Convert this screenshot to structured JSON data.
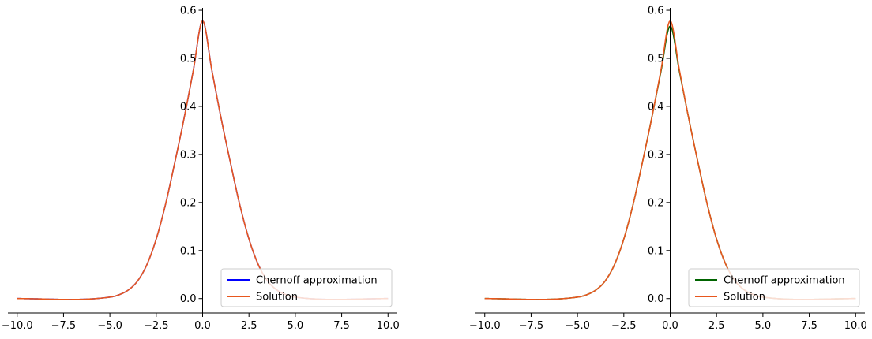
{
  "chart_data": [
    {
      "type": "line",
      "title": "",
      "xlabel": "",
      "ylabel": "",
      "xlim": [
        -10.5,
        10.5
      ],
      "ylim": [
        -0.03,
        0.605
      ],
      "xticks": [
        -10.0,
        -7.5,
        -5.0,
        -2.5,
        0.0,
        2.5,
        5.0,
        7.5,
        10.0
      ],
      "xtick_labels": [
        "−10.0",
        "−7.5",
        "−5.0",
        "−2.5",
        "0.0",
        "2.5",
        "5.0",
        "7.5",
        "10.0"
      ],
      "yticks": [
        0.0,
        0.1,
        0.2,
        0.3,
        0.4,
        0.5,
        0.6
      ],
      "ytick_labels": [
        "0.0",
        "0.1",
        "0.2",
        "0.3",
        "0.4",
        "0.5",
        "0.6"
      ],
      "grid": false,
      "legend_position": "lower-right",
      "x": [
        -10.0,
        -5.0,
        -4.5,
        -4.0,
        -3.5,
        -3.0,
        -2.5,
        -2.0,
        -1.5,
        -1.0,
        -0.5,
        0.0,
        0.5,
        1.0,
        1.5,
        2.0,
        2.5,
        3.0,
        3.5,
        4.0,
        4.5,
        5.0,
        10.0
      ],
      "series": [
        {
          "name": "Chernoff approximation",
          "color": "#0000ff",
          "values": [
            0.0,
            0.003,
            0.008,
            0.018,
            0.037,
            0.071,
            0.124,
            0.196,
            0.283,
            0.375,
            0.475,
            0.578,
            0.475,
            0.375,
            0.283,
            0.196,
            0.124,
            0.071,
            0.037,
            0.018,
            0.008,
            0.003,
            0.0
          ]
        },
        {
          "name": "Solution",
          "color": "#e8571e",
          "values": [
            0.0,
            0.003,
            0.008,
            0.018,
            0.037,
            0.071,
            0.124,
            0.196,
            0.283,
            0.375,
            0.475,
            0.578,
            0.475,
            0.375,
            0.283,
            0.196,
            0.124,
            0.071,
            0.037,
            0.018,
            0.008,
            0.003,
            0.0
          ]
        }
      ]
    },
    {
      "type": "line",
      "title": "",
      "xlabel": "",
      "ylabel": "",
      "xlim": [
        -10.5,
        10.5
      ],
      "ylim": [
        -0.03,
        0.605
      ],
      "xticks": [
        -10.0,
        -7.5,
        -5.0,
        -2.5,
        0.0,
        2.5,
        5.0,
        7.5,
        10.0
      ],
      "xtick_labels": [
        "−10.0",
        "−7.5",
        "−5.0",
        "−2.5",
        "0.0",
        "2.5",
        "5.0",
        "7.5",
        "10.0"
      ],
      "yticks": [
        0.0,
        0.1,
        0.2,
        0.3,
        0.4,
        0.5,
        0.6
      ],
      "ytick_labels": [
        "0.0",
        "0.1",
        "0.2",
        "0.3",
        "0.4",
        "0.5",
        "0.6"
      ],
      "grid": false,
      "legend_position": "lower-right",
      "x": [
        -10.0,
        -5.0,
        -4.5,
        -4.0,
        -3.5,
        -3.0,
        -2.5,
        -2.0,
        -1.5,
        -1.0,
        -0.5,
        0.0,
        0.5,
        1.0,
        1.5,
        2.0,
        2.5,
        3.0,
        3.5,
        4.0,
        4.5,
        5.0,
        10.0
      ],
      "series": [
        {
          "name": "Chernoff approximation",
          "color": "#006400",
          "values": [
            0.0,
            0.003,
            0.008,
            0.018,
            0.037,
            0.071,
            0.124,
            0.196,
            0.283,
            0.375,
            0.472,
            0.567,
            0.472,
            0.375,
            0.283,
            0.196,
            0.124,
            0.071,
            0.037,
            0.018,
            0.008,
            0.003,
            0.0
          ]
        },
        {
          "name": "Solution",
          "color": "#e8571e",
          "values": [
            0.0,
            0.003,
            0.008,
            0.018,
            0.037,
            0.071,
            0.124,
            0.196,
            0.283,
            0.375,
            0.475,
            0.578,
            0.475,
            0.375,
            0.283,
            0.196,
            0.124,
            0.071,
            0.037,
            0.018,
            0.008,
            0.003,
            0.0
          ]
        }
      ]
    }
  ]
}
